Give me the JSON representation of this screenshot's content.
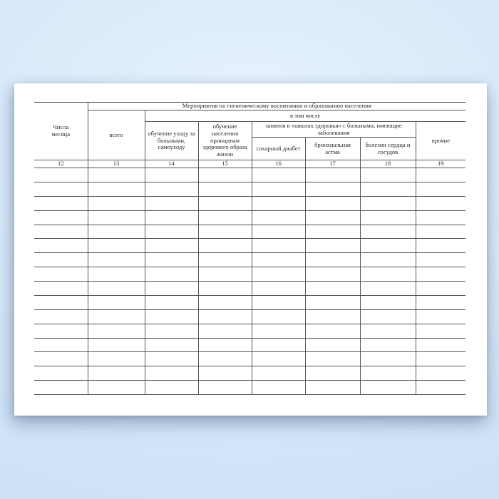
{
  "page": {
    "bg_center": "#eaf4fe",
    "bg_mid": "#d9eafa",
    "bg_edge": "#c8def4",
    "paper_color": "#ffffff",
    "line_color": "#545454",
    "text_color": "#2e2e2e"
  },
  "form_table": {
    "title": "Мероприятия по гигиеническому воспитанию и образованию населения",
    "including": "в том числе",
    "school_group": "занятия в «школах здоровья» с больными, имеющие заболевания",
    "columns": [
      {
        "label": "Числа месяца",
        "number": "12"
      },
      {
        "label": "всего",
        "number": "13"
      },
      {
        "label": "обучение уходу за больными, самоуходу",
        "number": "14"
      },
      {
        "label": "обучение населения принципам здорового образа жизни",
        "number": "15"
      },
      {
        "label": "сахарный диабет",
        "number": "16"
      },
      {
        "label": "бронхиальная астма",
        "number": "17"
      },
      {
        "label": "болезни сердца и сосудов",
        "number": "18"
      },
      {
        "label": "прочие",
        "number": "19"
      }
    ],
    "empty_row_count": 16
  }
}
